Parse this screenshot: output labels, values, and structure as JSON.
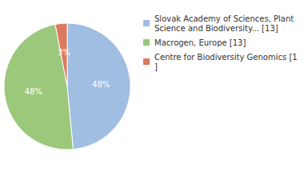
{
  "chart_data": {
    "type": "pie",
    "categories": [
      "Slovak Academy of Sciences, Plant Science and Biodiversity... [13]",
      "Macrogen, Europe [13]",
      "Centre for Biodiversity Genomics [1]"
    ],
    "values": [
      48,
      48,
      3
    ],
    "value_labels": [
      "48%",
      "48%",
      "3%"
    ],
    "colors": [
      "#a0bde2",
      "#9cc87b",
      "#dc7a5d"
    ],
    "data_labels": true,
    "legend": "right"
  }
}
